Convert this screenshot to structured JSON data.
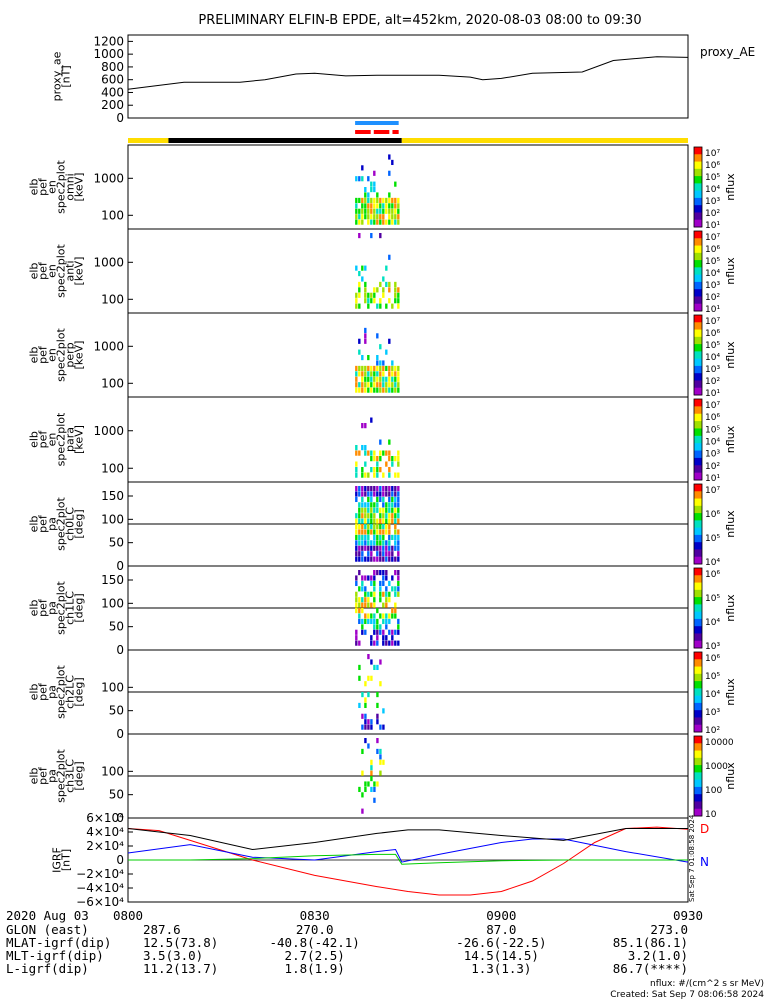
{
  "title": "PRELIMINARY ELFIN-B EPDE, alt=452km, 2020-08-03 08:00 to 09:30",
  "chart_data": [
    {
      "type": "line",
      "panel": "proxy_ae",
      "ylabel": [
        "proxy_ae",
        "[nT]"
      ],
      "legend": "proxy_AE",
      "yticks": [
        "1200",
        "1000",
        "800",
        "600",
        "400",
        "200",
        "0"
      ],
      "ylim": [
        0,
        1300
      ],
      "x_minutes": [
        0,
        4,
        9,
        18,
        22,
        27,
        30,
        35,
        40,
        50,
        55,
        57,
        60,
        65,
        73,
        78,
        85,
        90
      ],
      "values": [
        450,
        500,
        560,
        560,
        600,
        690,
        700,
        660,
        670,
        670,
        640,
        600,
        620,
        700,
        720,
        900,
        960,
        950
      ]
    },
    {
      "type": "bar",
      "panel": "orbit_bars",
      "segments": [
        {
          "color": "#ffdd00",
          "from": 0,
          "to": 6.5
        },
        {
          "color": "#000000",
          "from": 6.5,
          "to": 44
        },
        {
          "color": "#ffdd00",
          "from": 44,
          "to": 90
        }
      ],
      "science_zones": [
        {
          "color": "#1e90ff",
          "from": 36.5,
          "to": 43.5,
          "row": "top"
        },
        {
          "color": "#ff0000",
          "from": 36.5,
          "to": 39.0,
          "row": "bottom"
        },
        {
          "color": "#ff0000",
          "from": 39.5,
          "to": 42.0,
          "row": "bottom"
        },
        {
          "color": "#ff0000",
          "from": 42.5,
          "to": 43.5,
          "row": "bottom"
        }
      ]
    },
    {
      "type": "heatmap",
      "panel": "en_omni",
      "ylabel": [
        "elb",
        "pef",
        "en",
        "spec2plot",
        "omni",
        "[keV]"
      ],
      "yticks": [
        "1000",
        "100"
      ],
      "scale": "log",
      "cbar_ticks": [
        "10⁷",
        "10⁶",
        "10⁵",
        "10⁴",
        "10³",
        "10²",
        "10¹"
      ],
      "cbar_label": "nflux",
      "t_range": [
        36.5,
        43.8
      ],
      "density": 0.7
    },
    {
      "type": "heatmap",
      "panel": "en_anti",
      "ylabel": [
        "elb",
        "pef",
        "en",
        "spec2plot",
        "anti",
        "[keV]"
      ],
      "yticks": [
        "1000",
        "100"
      ],
      "scale": "log",
      "cbar_ticks": [
        "10⁷",
        "10⁶",
        "10⁵",
        "10⁴",
        "10³",
        "10²",
        "10¹"
      ],
      "cbar_label": "nflux",
      "t_range": [
        36.5,
        43.8
      ],
      "density": 0.3
    },
    {
      "type": "heatmap",
      "panel": "en_perp",
      "ylabel": [
        "elb",
        "pef",
        "en",
        "spec2plot",
        "perp",
        "[keV]"
      ],
      "yticks": [
        "1000",
        "100"
      ],
      "scale": "log",
      "cbar_ticks": [
        "10⁷",
        "10⁶",
        "10⁵",
        "10⁴",
        "10³",
        "10²",
        "10¹"
      ],
      "cbar_label": "nflux",
      "t_range": [
        36.5,
        43.8
      ],
      "density": 0.7
    },
    {
      "type": "heatmap",
      "panel": "en_para",
      "ylabel": [
        "elb",
        "pef",
        "en",
        "spec2plot",
        "para",
        "[keV]"
      ],
      "yticks": [
        "1000",
        "100"
      ],
      "scale": "log",
      "cbar_ticks": [
        "10⁷",
        "10⁶",
        "10⁵",
        "10⁴",
        "10³",
        "10²",
        "10¹"
      ],
      "cbar_label": "nflux",
      "t_range": [
        36.5,
        43.8
      ],
      "density": 0.35
    },
    {
      "type": "heatmap",
      "panel": "pa_ch0LC",
      "ylabel": [
        "elb",
        "pef",
        "pa",
        "spec2plot",
        "ch0LC",
        "[deg]"
      ],
      "yticks": [
        "150",
        "100",
        "50",
        "0"
      ],
      "ylim": [
        0,
        180
      ],
      "cbar_ticks": [
        "10⁷",
        "10⁶",
        "10⁵",
        "10⁴"
      ],
      "cbar_label": "nflux",
      "t_range": [
        36.5,
        43.8
      ],
      "density": 0.9
    },
    {
      "type": "heatmap",
      "panel": "pa_ch1LC",
      "ylabel": [
        "elb",
        "pef",
        "pa",
        "spec2plot",
        "ch1LC",
        "[deg]"
      ],
      "yticks": [
        "150",
        "100",
        "50",
        "0"
      ],
      "ylim": [
        0,
        180
      ],
      "cbar_ticks": [
        "10⁶",
        "10⁵",
        "10⁴",
        "10³"
      ],
      "cbar_label": "nflux",
      "t_range": [
        36.5,
        43.8
      ],
      "density": 0.6
    },
    {
      "type": "heatmap",
      "panel": "pa_ch2LC",
      "ylabel": [
        "elb",
        "pef",
        "pa",
        "spec2plot",
        "ch2LC",
        "[deg]"
      ],
      "yticks": [
        "100",
        "50",
        "0"
      ],
      "ylim": [
        0,
        180
      ],
      "cbar_ticks": [
        "10⁶",
        "10⁵",
        "10⁴",
        "10³",
        "10²"
      ],
      "cbar_label": "nflux",
      "t_range": [
        37,
        41.5
      ],
      "density": 0.25
    },
    {
      "type": "heatmap",
      "panel": "pa_ch3LC",
      "ylabel": [
        "elb",
        "pef",
        "pa",
        "spec2plot",
        "ch3LC",
        "[deg]"
      ],
      "yticks": [
        "100",
        "50",
        "0"
      ],
      "ylim": [
        0,
        180
      ],
      "cbar_ticks": [
        "10000",
        "1000",
        "100",
        "10"
      ],
      "cbar_label": "nflux",
      "t_range": [
        37,
        41.5
      ],
      "density": 0.25
    },
    {
      "type": "line",
      "panel": "igrf",
      "ylabel": [
        "IGRF",
        "[nT]"
      ],
      "yticks": [
        "6×10⁴",
        "4×10⁴",
        "2×10⁴",
        "0",
        "−2×10⁴",
        "−4×10⁴",
        "−6×10⁴"
      ],
      "ylim": [
        -60000,
        60000
      ],
      "series": [
        {
          "name": "D",
          "color": "#ff0000",
          "x": [
            0,
            5,
            10,
            20,
            30,
            40,
            45,
            50,
            55,
            60,
            65,
            70,
            75,
            80,
            85,
            90
          ],
          "values": [
            45000,
            42000,
            28000,
            0,
            -22000,
            -38000,
            -45000,
            -50000,
            -50000,
            -45000,
            -30000,
            -5000,
            25000,
            45000,
            47000,
            44000
          ]
        },
        {
          "name": "N",
          "color": "#0000ff",
          "x": [
            0,
            10,
            20,
            30,
            40,
            43,
            44,
            50,
            60,
            65,
            70,
            80,
            90
          ],
          "values": [
            10000,
            22000,
            4000,
            0,
            12000,
            15000,
            -3000,
            8000,
            25000,
            30000,
            30000,
            12000,
            -3000
          ]
        },
        {
          "name": "",
          "color": "#000000",
          "x": [
            0,
            10,
            20,
            30,
            40,
            45,
            50,
            60,
            70,
            80,
            90
          ],
          "values": [
            45000,
            35000,
            15000,
            25000,
            38000,
            43000,
            43000,
            35000,
            28000,
            45000,
            45000
          ]
        },
        {
          "name": "",
          "color": "#00cc00",
          "x": [
            0,
            10,
            20,
            30,
            40,
            43,
            44,
            50,
            60,
            70,
            80,
            90
          ],
          "values": [
            0,
            0,
            2000,
            6000,
            8000,
            8000,
            -6000,
            -4000,
            -1000,
            0,
            0,
            0
          ]
        }
      ]
    }
  ],
  "xticks": [
    "0800",
    "0830",
    "0900",
    "0930"
  ],
  "footer": {
    "date": "2020 Aug 03",
    "rows": [
      {
        "label": "GLON (east)",
        "values": [
          "287.6",
          "270.0",
          "87.0",
          "273.0"
        ]
      },
      {
        "label": "MLAT-igrf(dip)",
        "values": [
          "12.5(73.8)",
          "-40.8(-42.1)",
          "-26.6(-22.5)",
          "85.1(86.1)"
        ]
      },
      {
        "label": "MLT-igrf(dip)",
        "values": [
          "3.5(3.0)",
          "2.7(2.5)",
          "14.5(14.5)",
          "3.2(1.0)"
        ]
      },
      {
        "label": "L-igrf(dip)",
        "values": [
          "11.2(13.7)",
          "1.8(1.9)",
          "1.3(1.3)",
          "86.7(****)"
        ]
      }
    ],
    "units": "nflux: #/(cm^2 s sr MeV)",
    "created": "Created: Sat Sep  7 08:06:58 2024",
    "stamp": "Sat Sep  7 01:08:58 2024"
  }
}
